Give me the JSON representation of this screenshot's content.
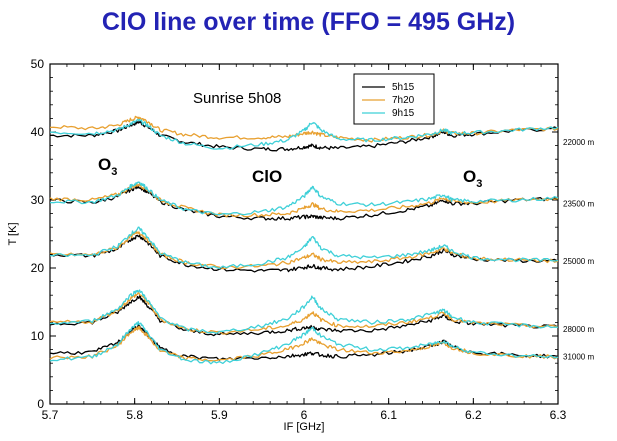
{
  "slide": {
    "title": "ClO line over time (FFO = 495 GHz)"
  },
  "chart_data": {
    "type": "line",
    "xlabel": "IF [GHz]",
    "ylabel": "T [K]",
    "xlim": [
      5.7,
      6.3
    ],
    "ylim": [
      0,
      50
    ],
    "x_ticks": [
      "5.7",
      "5.8",
      "5.9",
      "6",
      "6.1",
      "6.2",
      "6.3"
    ],
    "y_ticks": [
      "0",
      "10",
      "20",
      "30",
      "40",
      "50"
    ],
    "grid": false,
    "legend_position": "top-center",
    "series": [
      {
        "name": "5h15",
        "color": "#000000"
      },
      {
        "name": "7h20",
        "color": "#e8a030"
      },
      {
        "name": "9h15",
        "color": "#3fd0d8"
      }
    ],
    "annotations": {
      "sunrise": "Sunrise 5h08",
      "o3_left": {
        "main": "O",
        "sub": "3"
      },
      "clo": "ClO",
      "o3_right": {
        "main": "O",
        "sub": "3"
      }
    },
    "altitudes": [
      {
        "label": "22000 m",
        "label_y": 38.5,
        "line_5h15": {
          "x": [
            5.7,
            5.75,
            5.78,
            5.795,
            5.805,
            5.815,
            5.83,
            5.86,
            5.9,
            5.95,
            5.98,
            6.0,
            6.01,
            6.02,
            6.04,
            6.08,
            6.12,
            6.15,
            6.165,
            6.175,
            6.2,
            6.25,
            6.3
          ],
          "y": [
            39.5,
            39.5,
            40.2,
            41.0,
            41.5,
            40.8,
            39.5,
            38.5,
            37.8,
            37.5,
            37.5,
            37.8,
            38.0,
            37.7,
            37.6,
            37.9,
            38.6,
            39.3,
            40.0,
            39.5,
            39.7,
            40.2,
            40.5
          ]
        },
        "line_7h20": {
          "x": [
            5.7,
            5.75,
            5.78,
            5.795,
            5.805,
            5.815,
            5.83,
            5.86,
            5.9,
            5.95,
            5.98,
            6.0,
            6.01,
            6.02,
            6.04,
            6.08,
            6.12,
            6.15,
            6.165,
            6.175,
            6.2,
            6.25,
            6.3
          ],
          "y": [
            40.8,
            40.5,
            41.0,
            41.8,
            42.2,
            41.6,
            40.3,
            39.6,
            39.2,
            39.2,
            39.3,
            39.8,
            40.0,
            39.6,
            39.2,
            38.8,
            39.2,
            39.6,
            40.2,
            39.8,
            39.8,
            40.3,
            40.5
          ]
        },
        "line_9h15": {
          "x": [
            5.7,
            5.75,
            5.78,
            5.795,
            5.805,
            5.815,
            5.83,
            5.86,
            5.9,
            5.95,
            5.98,
            6.0,
            6.01,
            6.02,
            6.04,
            6.08,
            6.12,
            6.15,
            6.165,
            6.175,
            6.2,
            6.25,
            6.3
          ],
          "y": [
            40.0,
            39.8,
            40.3,
            41.2,
            41.7,
            41.0,
            39.5,
            38.3,
            37.6,
            38.2,
            38.8,
            40.2,
            41.5,
            40.3,
            39.0,
            38.8,
            39.2,
            39.7,
            40.3,
            39.8,
            39.9,
            40.3,
            40.7
          ]
        }
      },
      {
        "label": "23500 m",
        "label_y": 29.5,
        "line_5h15": {
          "x": [
            5.7,
            5.75,
            5.78,
            5.795,
            5.805,
            5.815,
            5.83,
            5.86,
            5.9,
            5.95,
            5.98,
            6.0,
            6.01,
            6.02,
            6.04,
            6.08,
            6.12,
            6.15,
            6.165,
            6.175,
            6.2,
            6.25,
            6.3
          ],
          "y": [
            30.0,
            29.6,
            30.5,
            31.5,
            32.0,
            31.2,
            29.8,
            28.5,
            27.6,
            27.3,
            27.3,
            27.5,
            27.6,
            27.4,
            27.3,
            27.8,
            28.5,
            29.2,
            30.0,
            29.5,
            29.5,
            30.0,
            30.2
          ]
        },
        "line_7h20": {
          "x": [
            5.7,
            5.75,
            5.78,
            5.795,
            5.805,
            5.815,
            5.83,
            5.86,
            5.9,
            5.95,
            5.98,
            6.0,
            6.01,
            6.02,
            6.04,
            6.08,
            6.12,
            6.15,
            6.165,
            6.175,
            6.2,
            6.25,
            6.3
          ],
          "y": [
            30.2,
            30.0,
            30.8,
            31.8,
            32.3,
            31.5,
            30.0,
            28.8,
            27.8,
            27.8,
            28.0,
            28.8,
            29.4,
            28.7,
            28.3,
            28.5,
            29.0,
            29.6,
            30.3,
            29.8,
            29.6,
            30.0,
            30.2
          ]
        },
        "line_9h15": {
          "x": [
            5.7,
            5.75,
            5.78,
            5.795,
            5.805,
            5.815,
            5.83,
            5.86,
            5.9,
            5.95,
            5.98,
            6.0,
            6.01,
            6.02,
            6.04,
            6.08,
            6.12,
            6.15,
            6.165,
            6.175,
            6.2,
            6.25,
            6.3
          ],
          "y": [
            29.8,
            29.7,
            30.7,
            32.0,
            32.7,
            31.7,
            30.0,
            28.6,
            27.8,
            28.3,
            29.0,
            30.5,
            32.0,
            30.5,
            29.5,
            29.3,
            29.7,
            30.2,
            30.8,
            30.0,
            29.8,
            30.0,
            30.3
          ]
        }
      },
      {
        "label": "25000 m",
        "label_y": 21.0,
        "line_5h15": {
          "x": [
            5.7,
            5.75,
            5.78,
            5.795,
            5.805,
            5.815,
            5.83,
            5.86,
            5.9,
            5.95,
            5.98,
            6.0,
            6.01,
            6.02,
            6.04,
            6.08,
            6.12,
            6.15,
            6.165,
            6.175,
            6.2,
            6.25,
            6.3
          ],
          "y": [
            22.0,
            21.8,
            22.8,
            24.2,
            24.8,
            23.8,
            21.8,
            20.5,
            19.8,
            19.6,
            19.7,
            20.1,
            20.3,
            20.0,
            19.8,
            20.2,
            21.0,
            21.8,
            22.6,
            22.0,
            21.3,
            21.1,
            21.0
          ]
        },
        "line_7h20": {
          "x": [
            5.7,
            5.75,
            5.78,
            5.795,
            5.805,
            5.815,
            5.83,
            5.86,
            5.9,
            5.95,
            5.98,
            6.0,
            6.01,
            6.02,
            6.04,
            6.08,
            6.12,
            6.15,
            6.165,
            6.175,
            6.2,
            6.25,
            6.3
          ],
          "y": [
            22.0,
            21.9,
            23.0,
            24.6,
            25.3,
            24.2,
            22.0,
            20.8,
            20.1,
            20.3,
            20.8,
            21.5,
            22.0,
            21.3,
            20.8,
            20.9,
            21.5,
            22.2,
            22.9,
            22.2,
            21.4,
            21.2,
            21.0
          ]
        },
        "line_9h15": {
          "x": [
            5.7,
            5.75,
            5.78,
            5.795,
            5.805,
            5.815,
            5.83,
            5.86,
            5.9,
            5.95,
            5.98,
            6.0,
            6.01,
            6.02,
            6.04,
            6.08,
            6.12,
            6.15,
            6.165,
            6.175,
            6.2,
            6.25,
            6.3
          ],
          "y": [
            21.8,
            21.9,
            23.2,
            25.0,
            25.8,
            24.6,
            22.2,
            20.8,
            20.0,
            20.7,
            21.5,
            23.0,
            24.6,
            23.0,
            21.8,
            21.5,
            21.9,
            22.6,
            23.3,
            22.5,
            21.5,
            21.2,
            21.1
          ]
        }
      },
      {
        "label": "28000 m",
        "label_y": 11.0,
        "line_5h15": {
          "x": [
            5.7,
            5.75,
            5.78,
            5.795,
            5.805,
            5.815,
            5.83,
            5.86,
            5.9,
            5.95,
            5.98,
            6.0,
            6.01,
            6.02,
            6.04,
            6.08,
            6.12,
            6.15,
            6.165,
            6.175,
            6.2,
            6.25,
            6.3
          ],
          "y": [
            11.8,
            12.0,
            13.5,
            15.0,
            15.8,
            14.5,
            12.3,
            10.8,
            10.2,
            10.5,
            10.8,
            11.2,
            11.3,
            11.0,
            10.8,
            10.8,
            11.5,
            12.3,
            13.0,
            12.2,
            11.8,
            11.5,
            11.3
          ]
        },
        "line_7h20": {
          "x": [
            5.7,
            5.75,
            5.78,
            5.795,
            5.805,
            5.815,
            5.83,
            5.86,
            5.9,
            5.95,
            5.98,
            6.0,
            6.01,
            6.02,
            6.04,
            6.08,
            6.12,
            6.15,
            6.165,
            6.175,
            6.2,
            6.25,
            6.3
          ],
          "y": [
            12.0,
            12.1,
            13.8,
            15.5,
            16.3,
            15.0,
            12.5,
            11.0,
            10.5,
            11.0,
            11.5,
            12.5,
            13.5,
            12.4,
            11.5,
            11.4,
            12.0,
            12.7,
            13.4,
            12.5,
            11.9,
            11.6,
            11.3
          ]
        },
        "line_9h15": {
          "x": [
            5.7,
            5.75,
            5.78,
            5.795,
            5.805,
            5.815,
            5.83,
            5.86,
            5.9,
            5.95,
            5.98,
            6.0,
            6.01,
            6.02,
            6.04,
            6.08,
            6.12,
            6.15,
            6.165,
            6.175,
            6.2,
            6.25,
            6.3
          ],
          "y": [
            11.8,
            12.2,
            14.0,
            16.0,
            16.8,
            15.3,
            12.7,
            11.0,
            10.5,
            11.5,
            12.5,
            14.3,
            15.8,
            14.0,
            12.5,
            12.0,
            12.4,
            13.2,
            13.8,
            12.8,
            12.0,
            11.6,
            11.3
          ]
        }
      },
      {
        "label": "31000 m",
        "label_y": 7.0,
        "line_5h15": {
          "x": [
            5.7,
            5.75,
            5.78,
            5.795,
            5.805,
            5.815,
            5.83,
            5.86,
            5.9,
            5.95,
            5.98,
            6.0,
            6.01,
            6.02,
            6.04,
            6.08,
            6.12,
            6.15,
            6.165,
            6.175,
            6.2,
            6.25,
            6.3
          ],
          "y": [
            7.5,
            7.6,
            9.0,
            10.8,
            11.5,
            10.2,
            8.2,
            7.0,
            6.6,
            6.8,
            7.0,
            7.3,
            7.5,
            7.2,
            7.0,
            7.2,
            7.8,
            8.5,
            9.2,
            8.4,
            7.6,
            7.2,
            7.0
          ]
        },
        "line_7h20": {
          "x": [
            5.7,
            5.75,
            5.78,
            5.795,
            5.805,
            5.815,
            5.83,
            5.86,
            5.9,
            5.95,
            5.98,
            6.0,
            6.01,
            6.02,
            6.04,
            6.08,
            6.12,
            6.15,
            6.165,
            6.175,
            6.2,
            6.25,
            6.3
          ],
          "y": [
            6.8,
            7.0,
            8.6,
            10.5,
            11.2,
            10.0,
            7.8,
            6.7,
            6.4,
            7.2,
            8.0,
            9.0,
            9.6,
            8.8,
            8.0,
            7.5,
            7.8,
            8.5,
            9.0,
            8.3,
            7.5,
            7.1,
            6.9
          ]
        },
        "line_9h15": {
          "x": [
            5.7,
            5.75,
            5.78,
            5.795,
            5.805,
            5.815,
            5.83,
            5.86,
            5.9,
            5.95,
            5.98,
            6.0,
            6.01,
            6.02,
            6.04,
            6.08,
            6.12,
            6.15,
            6.165,
            6.175,
            6.2,
            6.25,
            6.3
          ],
          "y": [
            6.5,
            6.9,
            8.8,
            11.0,
            12.0,
            10.5,
            8.0,
            6.5,
            6.0,
            7.5,
            8.8,
            10.2,
            11.2,
            10.0,
            8.8,
            8.0,
            8.2,
            8.8,
            9.3,
            8.5,
            7.6,
            7.1,
            6.9
          ]
        }
      }
    ]
  }
}
